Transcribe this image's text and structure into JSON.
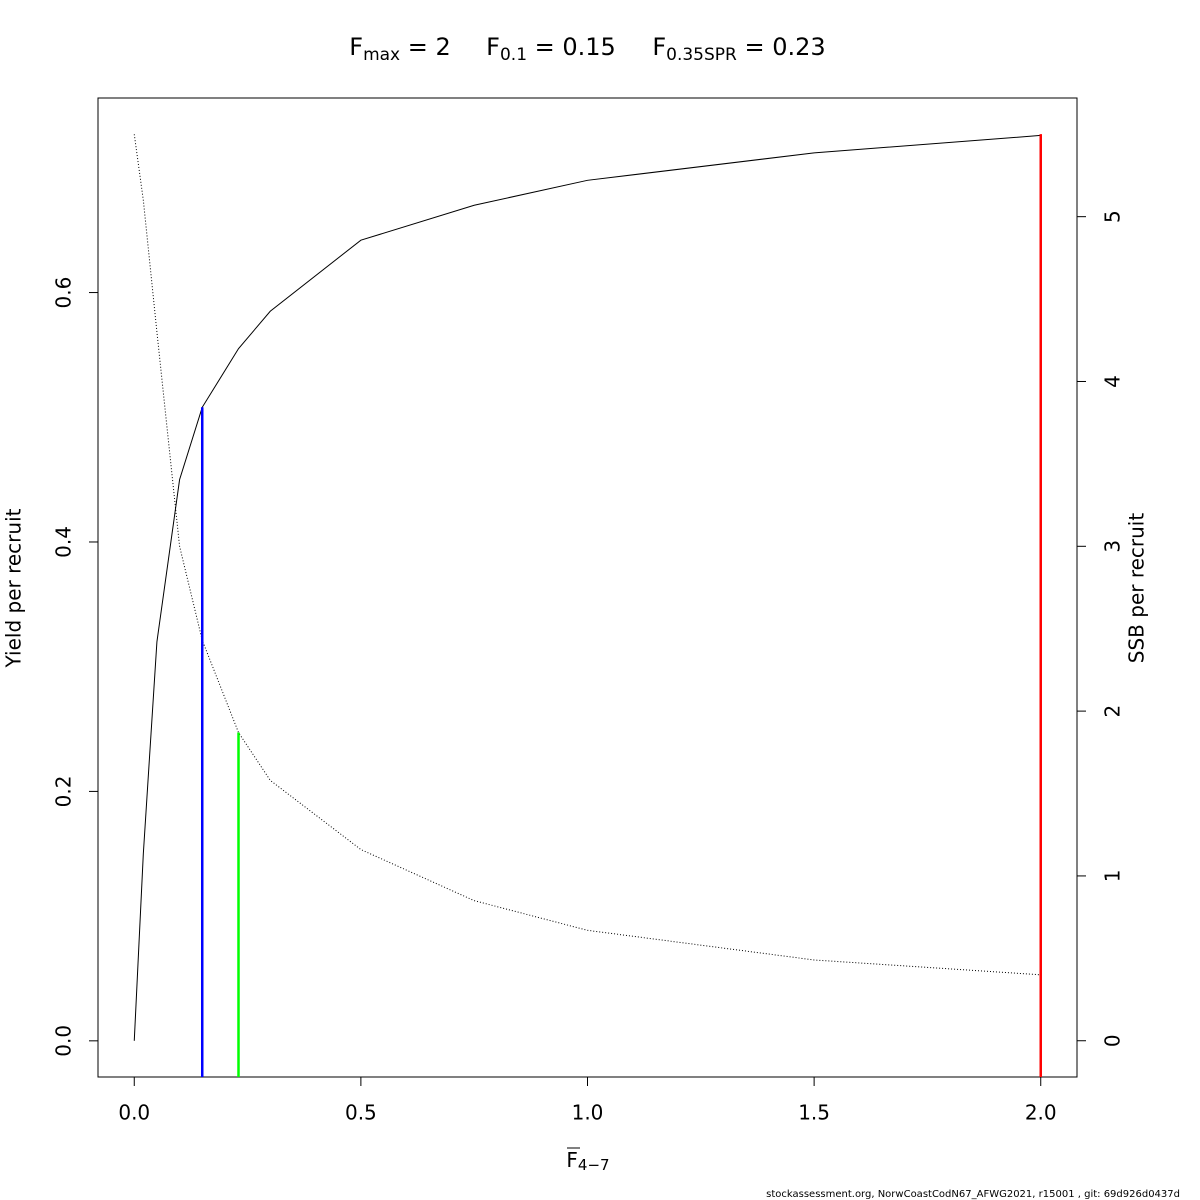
{
  "chart_data": {
    "type": "line",
    "title": [
      {
        "base": "F",
        "sub": "max",
        "rest": " = 2"
      },
      {
        "base": "F",
        "sub": "0.1",
        "rest": " = 0.15"
      },
      {
        "base": "F",
        "sub": "0.35SPR",
        "rest": " = 0.23"
      }
    ],
    "x_label": {
      "base": "F",
      "sub": "4−7"
    },
    "y_label": "Yield per recruit",
    "y2_label": "SSB per recruit",
    "footer": "stockassessment.org, NorwCoastCodN67_AFWG2021, r15001 , git: 69d926d0437d",
    "x": [
      0,
      0.02,
      0.05,
      0.1,
      0.15,
      0.23,
      0.3,
      0.5,
      0.75,
      1.0,
      1.5,
      2.0
    ],
    "series": [
      {
        "name": "Yield per recruit",
        "color": "#000000",
        "style": "solid",
        "axis": "y",
        "values": [
          0,
          0.15,
          0.32,
          0.45,
          0.508,
          0.555,
          0.585,
          0.642,
          0.67,
          0.69,
          0.712,
          0.726
        ]
      },
      {
        "name": "SSB per recruit",
        "color": "#000000",
        "style": "dotted",
        "axis": "y2",
        "values": [
          5.5,
          5.1,
          4.3,
          3.0,
          2.43,
          1.87,
          1.58,
          1.16,
          0.85,
          0.67,
          0.49,
          0.4
        ]
      }
    ],
    "reference_lines": [
      {
        "x": 0.15,
        "top": 0.508,
        "axis": "y",
        "color": "#0000ff"
      },
      {
        "x": 0.23,
        "top": 1.87,
        "axis": "y2",
        "color": "#00ff00"
      },
      {
        "x": 2.0,
        "top": 0.727,
        "axis": "y",
        "color": "#ff0000"
      }
    ],
    "xlim": [
      -0.08,
      2.08
    ],
    "ylim": [
      -0.029,
      0.756
    ],
    "y2lim": [
      -0.22,
      5.72
    ],
    "xticks": [
      {
        "value": 0,
        "label": "0.0"
      },
      0.5,
      {
        "value": 1,
        "label": "1.0"
      },
      1.5,
      {
        "value": 2,
        "label": "2.0"
      }
    ],
    "yticks": [
      {
        "value": 0,
        "label": "0.0"
      },
      0.2,
      0.4,
      0.6
    ],
    "y2ticks": [
      0,
      1,
      2,
      3,
      4,
      5
    ]
  }
}
